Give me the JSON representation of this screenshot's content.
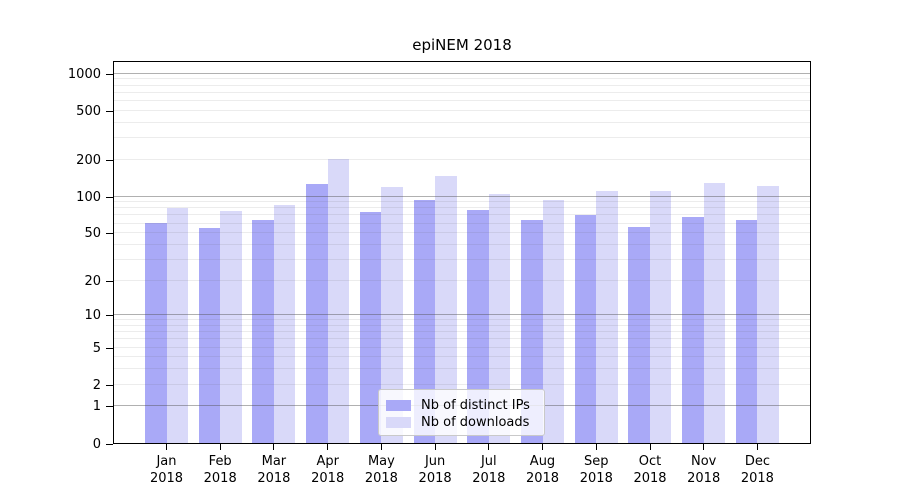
{
  "title": "epiNEM 2018",
  "chart_data": {
    "type": "bar",
    "title": "epiNEM 2018",
    "x_categories": [
      "Jan",
      "Feb",
      "Mar",
      "Apr",
      "May",
      "Jun",
      "Jul",
      "Aug",
      "Sep",
      "Oct",
      "Nov",
      "Dec"
    ],
    "x_year_label": "2018",
    "series": [
      {
        "name": "Nb of distinct IPs",
        "color": "#a9a9f7",
        "values": [
          60,
          55,
          64,
          125,
          74,
          92,
          77,
          63,
          70,
          56,
          67,
          63
        ]
      },
      {
        "name": "Nb of downloads",
        "color": "#d9d9f9",
        "values": [
          80,
          76,
          85,
          200,
          118,
          146,
          104,
          93,
          110,
          110,
          128,
          120
        ]
      }
    ],
    "y_axis": {
      "scale": "log1p",
      "tick_values": [
        0,
        1,
        2,
        5,
        10,
        20,
        50,
        100,
        200,
        500,
        1000
      ],
      "top_value": 1265
    },
    "grid": {
      "major_at": [
        1,
        10,
        100,
        1000
      ],
      "major_color": "rgba(80,80,80,0.45)",
      "minor_color": "rgba(100,100,100,0.12)"
    },
    "legend_position": "bottom-center",
    "background": "#ffffff",
    "axis_color": "#000000"
  }
}
